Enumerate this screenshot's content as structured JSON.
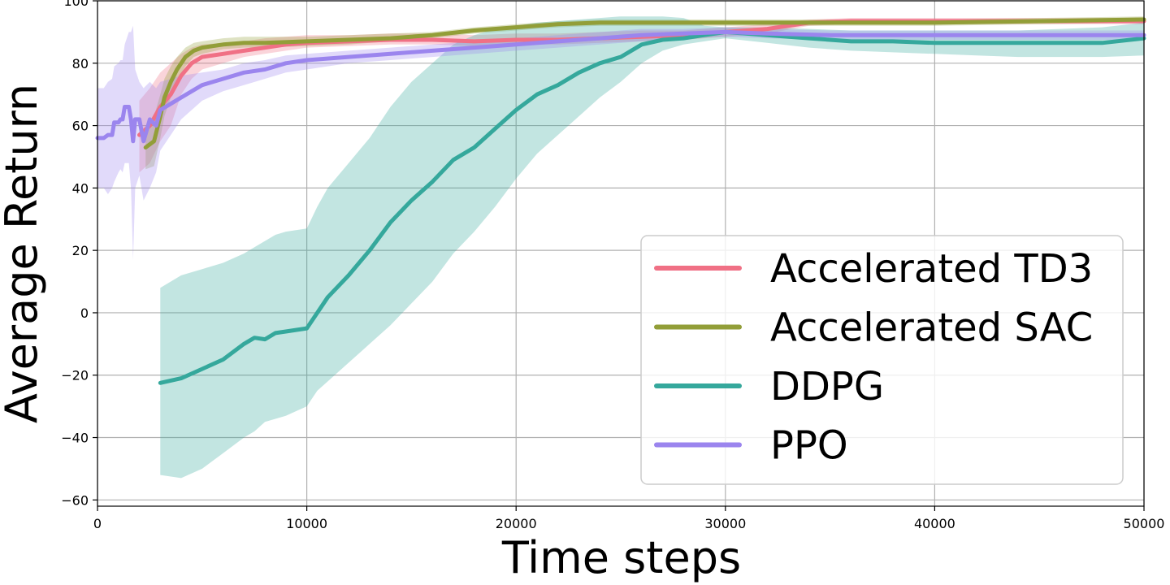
{
  "chart_data": {
    "type": "line",
    "title": "",
    "xlabel": "Time steps",
    "ylabel": "Average Return",
    "xlim": [
      0,
      50000
    ],
    "ylim": [
      -62,
      100
    ],
    "xticks": [
      0,
      10000,
      20000,
      30000,
      40000,
      50000
    ],
    "yticks": [
      -60,
      -40,
      -20,
      0,
      20,
      40,
      60,
      80,
      100
    ],
    "grid": true,
    "legend_position": "lower-right",
    "series": [
      {
        "name": "Accelerated TD3",
        "color": "#f07085",
        "x": [
          2000,
          2500,
          3000,
          3500,
          4000,
          4500,
          5000,
          6000,
          7000,
          8000,
          9000,
          10000,
          12000,
          14000,
          16000,
          18000,
          20000,
          22000,
          24000,
          26000,
          28000,
          30000,
          32000,
          34000,
          36000,
          40000,
          45000,
          50000
        ],
        "y": [
          57,
          60,
          66,
          70,
          76,
          80,
          82,
          83,
          84,
          85,
          86,
          86.5,
          87,
          87.5,
          87.5,
          87,
          87.5,
          87.5,
          88,
          88.5,
          89,
          90,
          91,
          93,
          93.5,
          93.5,
          93.5,
          93.5
        ],
        "lower": [
          45,
          48,
          55,
          60,
          70,
          75,
          78,
          80,
          82,
          83,
          84,
          85,
          85.5,
          86,
          86,
          85.5,
          86,
          86,
          86.5,
          87,
          87.5,
          88.5,
          89.5,
          92,
          92.5,
          92.5,
          92.5,
          92.5
        ],
        "upper": [
          68,
          72,
          77,
          80,
          83,
          85,
          86,
          86.5,
          87,
          88,
          88.5,
          89,
          89,
          89.5,
          89.5,
          89,
          89.5,
          89.5,
          90,
          90.5,
          90.5,
          91.5,
          92.5,
          94,
          94.5,
          94.5,
          94.5,
          94.5
        ]
      },
      {
        "name": "Accelerated SAC",
        "color": "#929e38",
        "x": [
          2300,
          2700,
          3000,
          3200,
          3500,
          3800,
          4200,
          4600,
          5000,
          6000,
          7000,
          8000,
          10000,
          12000,
          14000,
          16000,
          18000,
          20000,
          22000,
          24000,
          26000,
          28000,
          30000,
          35000,
          40000,
          45000,
          50000
        ],
        "y": [
          53,
          55,
          63,
          69,
          74,
          78,
          82,
          84,
          85,
          86,
          86.5,
          86.5,
          87,
          87.5,
          88,
          89,
          90.5,
          91.5,
          92.5,
          93,
          93,
          93,
          93,
          93,
          93,
          93.5,
          94
        ],
        "lower": [
          46,
          47,
          56,
          63,
          69,
          74,
          79,
          82,
          83,
          84.5,
          85,
          85,
          85.5,
          86,
          87,
          88,
          89.5,
          90.5,
          91.5,
          92,
          92,
          92,
          92,
          92,
          92,
          92.5,
          93
        ],
        "upper": [
          60,
          63,
          70,
          75,
          79,
          82,
          85,
          86.5,
          87,
          88,
          88.5,
          88.5,
          88.5,
          89,
          89.5,
          90,
          91.5,
          92.5,
          93.5,
          94,
          94,
          94,
          94,
          94,
          94,
          94.5,
          95
        ]
      },
      {
        "name": "DDPG",
        "color": "#35a89c",
        "x": [
          3000,
          4000,
          5000,
          6000,
          7000,
          7500,
          8000,
          8500,
          9000,
          10000,
          10500,
          11000,
          12000,
          12500,
          13000,
          14000,
          15000,
          16000,
          17000,
          18000,
          19000,
          20000,
          21000,
          22000,
          23000,
          24000,
          25000,
          26000,
          27000,
          28000,
          29000,
          30000,
          32000,
          34000,
          36000,
          38000,
          40000,
          42000,
          44000,
          46000,
          48000,
          50000
        ],
        "y": [
          -22.5,
          -21,
          -18,
          -15,
          -10,
          -8,
          -8.5,
          -6.5,
          -6,
          -5,
          0,
          5,
          12,
          16,
          20,
          29,
          36,
          42,
          49,
          53,
          59,
          65,
          70,
          73,
          77,
          80,
          82,
          86,
          87.5,
          88,
          89,
          90,
          89,
          88,
          87,
          87,
          86.5,
          86.5,
          86.5,
          86.5,
          86.5,
          88
        ],
        "lower": [
          -52,
          -53,
          -50,
          -45,
          -40,
          -38,
          -35,
          -34,
          -33,
          -30,
          -25,
          -22,
          -16,
          -13,
          -10,
          -4,
          3,
          10,
          19,
          26,
          34,
          43,
          51,
          57,
          63,
          69,
          74,
          80,
          84,
          86,
          87,
          88,
          86.5,
          85,
          84,
          83.5,
          83,
          82.5,
          82,
          82,
          82,
          82.5
        ],
        "upper": [
          8,
          12,
          14,
          16,
          19,
          21,
          23,
          25,
          26,
          27,
          34,
          40,
          48,
          52,
          56,
          66,
          74,
          80,
          86,
          89,
          91,
          92,
          93,
          93.5,
          94,
          94.5,
          95,
          95,
          95,
          94.5,
          92,
          91.5,
          91.5,
          91,
          90.5,
          90.5,
          90.5,
          90.5,
          90.5,
          91,
          91.5,
          93
        ]
      },
      {
        "name": "PPO",
        "color": "#9b85ee",
        "x": [
          0,
          300,
          500,
          700,
          800,
          1000,
          1100,
          1200,
          1300,
          1500,
          1600,
          1700,
          1800,
          2000,
          2200,
          2500,
          2800,
          3000,
          3500,
          4000,
          5000,
          6000,
          7000,
          8000,
          9000,
          10000,
          12000,
          14000,
          16000,
          18000,
          20000,
          22000,
          24000,
          26000,
          28000,
          30000,
          32000,
          35000,
          40000,
          45000,
          50000
        ],
        "y": [
          56,
          56,
          57,
          57,
          61,
          61,
          62,
          62,
          66,
          66,
          62,
          55,
          62,
          62,
          55,
          62,
          60,
          65,
          67,
          69,
          73,
          75,
          77,
          78,
          80,
          81,
          82,
          83,
          84,
          85,
          86,
          87,
          88,
          89,
          89.5,
          90,
          89.5,
          89,
          89,
          89,
          89
        ],
        "lower": [
          40,
          40,
          38,
          40,
          42,
          45,
          46,
          45,
          48,
          48,
          40,
          17,
          40,
          44,
          36,
          40,
          45,
          52,
          57,
          62,
          68,
          71,
          73,
          75,
          77,
          78,
          80,
          81,
          82,
          83,
          84,
          85,
          86,
          87,
          88,
          88.5,
          88,
          87.5,
          87.5,
          87.5,
          87.5
        ],
        "upper": [
          72,
          72,
          74,
          75,
          79,
          80,
          81,
          81,
          86,
          90,
          90,
          92,
          78,
          74,
          72,
          74,
          72,
          74,
          75,
          76,
          77,
          78,
          80,
          81,
          82.5,
          83,
          84,
          85,
          86,
          87,
          88,
          89,
          90,
          91,
          91,
          91.5,
          91,
          90.5,
          90.5,
          90.5,
          90.5
        ]
      }
    ]
  }
}
